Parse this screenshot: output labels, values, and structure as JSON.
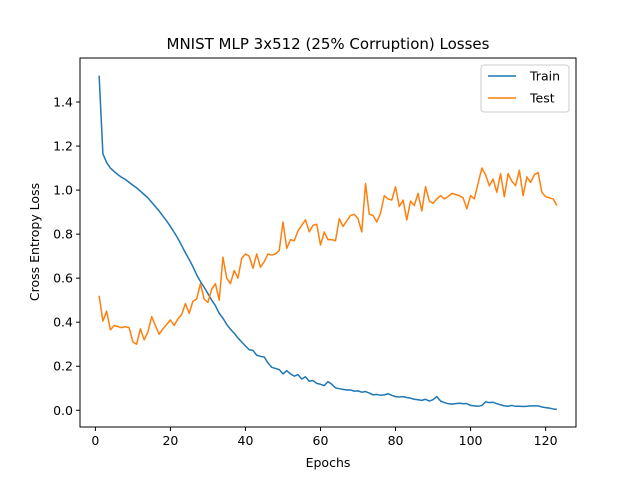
{
  "chart_data": {
    "type": "line",
    "title": "MNIST MLP 3x512 (25% Corruption) Losses",
    "xlabel": "Epochs",
    "ylabel": "Cross Entropy Loss",
    "xlim": [
      -4.1,
      128.1
    ],
    "ylim": [
      -0.076,
      1.6
    ],
    "xticks": [
      0,
      20,
      40,
      60,
      80,
      100,
      120
    ],
    "yticks": [
      0.0,
      0.2,
      0.4,
      0.6,
      0.8,
      1.0,
      1.2,
      1.4
    ],
    "ytick_labels": [
      "0.0",
      "0.2",
      "0.4",
      "0.6",
      "0.8",
      "1.0",
      "1.2",
      "1.4"
    ],
    "grid": false,
    "legend_position": "top-right",
    "series": [
      {
        "name": "Train",
        "color": "#1f77b4",
        "x_start": 1,
        "values": [
          1.52,
          1.165,
          1.125,
          1.1,
          1.085,
          1.07,
          1.058,
          1.048,
          1.035,
          1.022,
          1.01,
          0.995,
          0.98,
          0.965,
          0.945,
          0.925,
          0.905,
          0.882,
          0.86,
          0.835,
          0.808,
          0.78,
          0.748,
          0.715,
          0.685,
          0.652,
          0.615,
          0.585,
          0.558,
          0.53,
          0.5,
          0.475,
          0.44,
          0.418,
          0.39,
          0.368,
          0.35,
          0.328,
          0.31,
          0.292,
          0.275,
          0.272,
          0.25,
          0.245,
          0.242,
          0.215,
          0.195,
          0.19,
          0.185,
          0.165,
          0.18,
          0.165,
          0.155,
          0.162,
          0.142,
          0.152,
          0.132,
          0.135,
          0.122,
          0.118,
          0.112,
          0.13,
          0.118,
          0.102,
          0.098,
          0.095,
          0.092,
          0.092,
          0.087,
          0.088,
          0.082,
          0.085,
          0.078,
          0.07,
          0.072,
          0.068,
          0.07,
          0.075,
          0.068,
          0.062,
          0.06,
          0.062,
          0.058,
          0.055,
          0.05,
          0.048,
          0.045,
          0.05,
          0.042,
          0.048,
          0.062,
          0.042,
          0.035,
          0.03,
          0.028,
          0.03,
          0.032,
          0.03,
          0.03,
          0.022,
          0.02,
          0.018,
          0.022,
          0.038,
          0.035,
          0.036,
          0.03,
          0.025,
          0.02,
          0.018,
          0.022,
          0.018,
          0.018,
          0.017,
          0.018,
          0.02,
          0.02,
          0.02,
          0.015,
          0.012,
          0.01,
          0.006,
          0.004
        ]
      },
      {
        "name": "Test",
        "color": "#ff7f0e",
        "x_start": 1,
        "values": [
          0.52,
          0.405,
          0.45,
          0.365,
          0.385,
          0.38,
          0.375,
          0.38,
          0.375,
          0.31,
          0.3,
          0.37,
          0.32,
          0.355,
          0.425,
          0.385,
          0.345,
          0.37,
          0.39,
          0.41,
          0.385,
          0.415,
          0.435,
          0.485,
          0.44,
          0.495,
          0.505,
          0.575,
          0.505,
          0.49,
          0.55,
          0.575,
          0.5,
          0.695,
          0.6,
          0.575,
          0.635,
          0.6,
          0.69,
          0.71,
          0.7,
          0.645,
          0.71,
          0.65,
          0.675,
          0.71,
          0.705,
          0.71,
          0.725,
          0.855,
          0.735,
          0.775,
          0.77,
          0.815,
          0.84,
          0.865,
          0.81,
          0.84,
          0.845,
          0.75,
          0.81,
          0.775,
          0.775,
          0.77,
          0.87,
          0.835,
          0.86,
          0.885,
          0.89,
          0.87,
          0.81,
          1.03,
          0.89,
          0.885,
          0.855,
          0.895,
          0.975,
          0.96,
          0.955,
          1.015,
          0.925,
          0.955,
          0.865,
          0.95,
          0.93,
          0.985,
          0.905,
          1.015,
          0.95,
          0.94,
          0.96,
          0.975,
          0.96,
          0.97,
          0.985,
          0.98,
          0.975,
          0.965,
          0.915,
          0.975,
          0.96,
          1.03,
          1.1,
          1.07,
          1.02,
          1.05,
          0.99,
          1.075,
          0.97,
          1.075,
          1.04,
          1.02,
          1.09,
          0.975,
          1.06,
          1.035,
          1.07,
          1.08,
          0.99,
          0.97,
          0.965,
          0.96,
          0.93
        ]
      }
    ]
  }
}
